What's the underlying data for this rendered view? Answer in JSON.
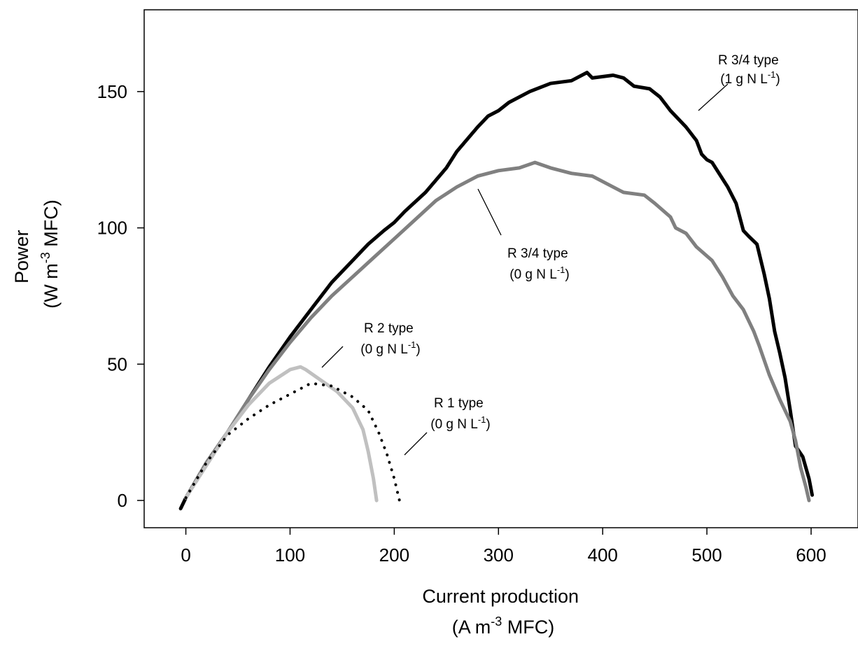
{
  "chart_data": {
    "type": "line",
    "title": "",
    "xlabel": {
      "line1": "Current production",
      "line2_pre": "(A m",
      "line2_sup": "-3",
      "line2_post": " MFC)"
    },
    "ylabel": {
      "line1": "Power",
      "line2_pre": "(W m",
      "line2_sup": "-3",
      "line2_post": " MFC)"
    },
    "xlim": [
      -40,
      645
    ],
    "ylim": [
      -10,
      180
    ],
    "xticks": [
      0,
      100,
      200,
      300,
      400,
      500,
      600
    ],
    "yticks": [
      0,
      50,
      100,
      150
    ],
    "grid": false,
    "series": [
      {
        "name": "R 3/4 type (1 g N L-1)",
        "color": "#000000",
        "style": "solid",
        "points": [
          [
            -5,
            -3
          ],
          [
            0,
            1
          ],
          [
            20,
            14
          ],
          [
            40,
            25
          ],
          [
            60,
            37
          ],
          [
            80,
            49
          ],
          [
            100,
            60
          ],
          [
            120,
            70
          ],
          [
            140,
            80
          ],
          [
            160,
            88
          ],
          [
            175,
            94
          ],
          [
            190,
            99
          ],
          [
            200,
            102
          ],
          [
            210,
            106
          ],
          [
            230,
            113
          ],
          [
            250,
            122
          ],
          [
            260,
            128
          ],
          [
            280,
            137
          ],
          [
            290,
            141
          ],
          [
            300,
            143
          ],
          [
            310,
            146
          ],
          [
            330,
            150
          ],
          [
            350,
            153
          ],
          [
            370,
            154
          ],
          [
            385,
            157
          ],
          [
            390,
            155
          ],
          [
            410,
            156
          ],
          [
            420,
            155
          ],
          [
            430,
            152
          ],
          [
            445,
            151
          ],
          [
            455,
            148
          ],
          [
            465,
            143
          ],
          [
            470,
            141
          ],
          [
            480,
            137
          ],
          [
            490,
            132
          ],
          [
            495,
            127
          ],
          [
            500,
            125
          ],
          [
            505,
            124
          ],
          [
            515,
            118
          ],
          [
            520,
            115
          ],
          [
            528,
            109
          ],
          [
            535,
            99
          ],
          [
            540,
            97
          ],
          [
            548,
            94
          ],
          [
            555,
            83
          ],
          [
            560,
            74
          ],
          [
            565,
            62
          ],
          [
            570,
            54
          ],
          [
            575,
            45
          ],
          [
            580,
            33
          ],
          [
            585,
            20
          ],
          [
            592,
            16
          ],
          [
            598,
            8
          ],
          [
            601,
            2
          ]
        ]
      },
      {
        "name": "R 3/4 type (0 g N L-1)",
        "color": "#808080",
        "style": "solid",
        "points": [
          [
            0,
            1
          ],
          [
            20,
            14
          ],
          [
            40,
            25
          ],
          [
            60,
            37
          ],
          [
            80,
            48
          ],
          [
            100,
            58
          ],
          [
            120,
            67
          ],
          [
            140,
            75
          ],
          [
            160,
            82
          ],
          [
            180,
            89
          ],
          [
            200,
            96
          ],
          [
            220,
            103
          ],
          [
            240,
            110
          ],
          [
            260,
            115
          ],
          [
            280,
            119
          ],
          [
            300,
            121
          ],
          [
            320,
            122
          ],
          [
            335,
            124
          ],
          [
            350,
            122
          ],
          [
            370,
            120
          ],
          [
            390,
            119
          ],
          [
            410,
            115
          ],
          [
            420,
            113
          ],
          [
            440,
            112
          ],
          [
            450,
            109
          ],
          [
            465,
            104
          ],
          [
            470,
            100
          ],
          [
            480,
            98
          ],
          [
            490,
            93
          ],
          [
            505,
            88
          ],
          [
            515,
            82
          ],
          [
            525,
            75
          ],
          [
            535,
            70
          ],
          [
            545,
            62
          ],
          [
            550,
            57
          ],
          [
            560,
            46
          ],
          [
            570,
            37
          ],
          [
            580,
            29
          ],
          [
            585,
            22
          ],
          [
            590,
            12
          ],
          [
            595,
            5
          ],
          [
            598,
            0
          ]
        ]
      },
      {
        "name": "R 2 type (0 g N L-1)",
        "color": "#c0c0c0",
        "style": "solid",
        "points": [
          [
            0,
            1
          ],
          [
            20,
            13
          ],
          [
            40,
            25
          ],
          [
            60,
            35
          ],
          [
            80,
            43
          ],
          [
            100,
            48
          ],
          [
            110,
            49
          ],
          [
            115,
            48
          ],
          [
            130,
            44
          ],
          [
            145,
            40
          ],
          [
            160,
            34
          ],
          [
            170,
            26
          ],
          [
            175,
            18
          ],
          [
            180,
            8
          ],
          [
            183,
            0
          ]
        ]
      },
      {
        "name": "R 1 type (0 g N L-1)",
        "color": "#000000",
        "style": "dotted",
        "points": [
          [
            0,
            1
          ],
          [
            20,
            14
          ],
          [
            40,
            24
          ],
          [
            60,
            30
          ],
          [
            80,
            35
          ],
          [
            100,
            39
          ],
          [
            120,
            43
          ],
          [
            140,
            42
          ],
          [
            160,
            38
          ],
          [
            175,
            33
          ],
          [
            185,
            25
          ],
          [
            193,
            17
          ],
          [
            200,
            8
          ],
          [
            205,
            0
          ]
        ]
      }
    ],
    "annotations": [
      {
        "line1": "R 3/4 type",
        "line2_pre": "(1 g N L",
        "line2_sup": "-1",
        "line2_post": ")"
      },
      {
        "line1": "R 3/4 type",
        "line2_pre": "(0 g N L",
        "line2_sup": "-1",
        "line2_post": ")"
      },
      {
        "line1": "R 2 type",
        "line2_pre": "(0 g N L",
        "line2_sup": "-1",
        "line2_post": ")"
      },
      {
        "line1": "R 1 type",
        "line2_pre": "(0 g N L",
        "line2_sup": "-1",
        "line2_post": ")"
      }
    ]
  }
}
